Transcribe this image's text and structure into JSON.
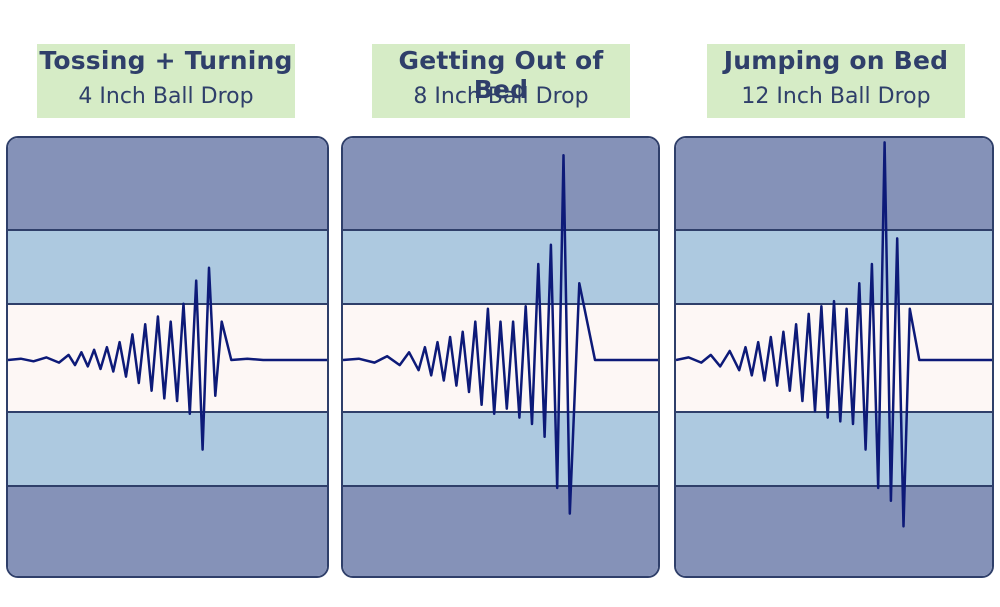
{
  "colors": {
    "outer_band": "#8592b8",
    "middle_band": "#adc9e0",
    "center_band": "#fdf7f5",
    "band_line": "#2f3f6a",
    "waveform": "#0d1a78",
    "header_bg": "#d6ecc6",
    "header_text": "#2f3f6a"
  },
  "chart_data": [
    {
      "type": "line",
      "title": "Tossing + Turning",
      "subtitle": "4 Inch Ball Drop",
      "y_levels": [
        "outer",
        "middle",
        "center",
        "middle",
        "outer"
      ],
      "series": [
        {
          "x": [
            0.0,
            0.04,
            0.08,
            0.12,
            0.16,
            0.19,
            0.21,
            0.23,
            0.25,
            0.27,
            0.29,
            0.31,
            0.33,
            0.35,
            0.37,
            0.39,
            0.41,
            0.43,
            0.45,
            0.47,
            0.49,
            0.51,
            0.53,
            0.55,
            0.57,
            0.59,
            0.61,
            0.63,
            0.65,
            0.67,
            0.7,
            0.75,
            0.8,
            0.85,
            0.9,
            1.0
          ],
          "values": [
            0.0,
            0.01,
            -0.01,
            0.02,
            -0.02,
            0.04,
            -0.04,
            0.06,
            -0.05,
            0.08,
            -0.07,
            0.1,
            -0.09,
            0.14,
            -0.13,
            0.2,
            -0.18,
            0.28,
            -0.24,
            0.34,
            -0.3,
            0.3,
            -0.32,
            0.44,
            -0.42,
            0.62,
            -0.7,
            0.72,
            -0.28,
            0.3,
            0.0,
            0.01,
            0.0,
            0.0,
            0.0,
            0.0
          ]
        }
      ]
    },
    {
      "type": "line",
      "title": "Getting Out of Bed",
      "subtitle": "8 Inch Ball Drop",
      "y_levels": [
        "outer",
        "middle",
        "center",
        "middle",
        "outer"
      ],
      "series": [
        {
          "x": [
            0.0,
            0.05,
            0.1,
            0.14,
            0.18,
            0.21,
            0.24,
            0.26,
            0.28,
            0.3,
            0.32,
            0.34,
            0.36,
            0.38,
            0.4,
            0.42,
            0.44,
            0.46,
            0.48,
            0.5,
            0.52,
            0.54,
            0.56,
            0.58,
            0.6,
            0.62,
            0.64,
            0.66,
            0.68,
            0.7,
            0.72,
            0.75,
            0.8,
            0.9,
            1.0
          ],
          "values": [
            0.0,
            0.01,
            -0.02,
            0.03,
            -0.04,
            0.06,
            -0.08,
            0.1,
            -0.12,
            0.14,
            -0.16,
            0.18,
            -0.2,
            0.22,
            -0.25,
            0.3,
            -0.35,
            0.4,
            -0.42,
            0.3,
            -0.38,
            0.3,
            -0.45,
            0.42,
            -0.5,
            0.75,
            -0.6,
            0.9,
            -1.0,
            1.6,
            -1.2,
            0.6,
            0.0,
            0.0,
            0.0
          ]
        }
      ]
    },
    {
      "type": "line",
      "title": "Jumping on Bed",
      "subtitle": "12 Inch Ball Drop",
      "y_levels": [
        "outer",
        "middle",
        "center",
        "middle",
        "outer"
      ],
      "series": [
        {
          "x": [
            0.0,
            0.04,
            0.08,
            0.11,
            0.14,
            0.17,
            0.2,
            0.22,
            0.24,
            0.26,
            0.28,
            0.3,
            0.32,
            0.34,
            0.36,
            0.38,
            0.4,
            0.42,
            0.44,
            0.46,
            0.48,
            0.5,
            0.52,
            0.54,
            0.56,
            0.58,
            0.6,
            0.62,
            0.64,
            0.66,
            0.68,
            0.7,
            0.72,
            0.74,
            0.77,
            0.8,
            0.9,
            1.0
          ],
          "values": [
            0.0,
            0.02,
            -0.02,
            0.04,
            -0.05,
            0.07,
            -0.08,
            0.1,
            -0.12,
            0.14,
            -0.16,
            0.18,
            -0.2,
            0.22,
            -0.24,
            0.28,
            -0.32,
            0.36,
            -0.4,
            0.42,
            -0.45,
            0.46,
            -0.48,
            0.4,
            -0.5,
            0.6,
            -0.7,
            0.75,
            -1.0,
            1.7,
            -1.1,
            0.95,
            -1.3,
            0.4,
            0.0,
            0.0,
            0.0,
            0.0
          ]
        }
      ]
    }
  ]
}
